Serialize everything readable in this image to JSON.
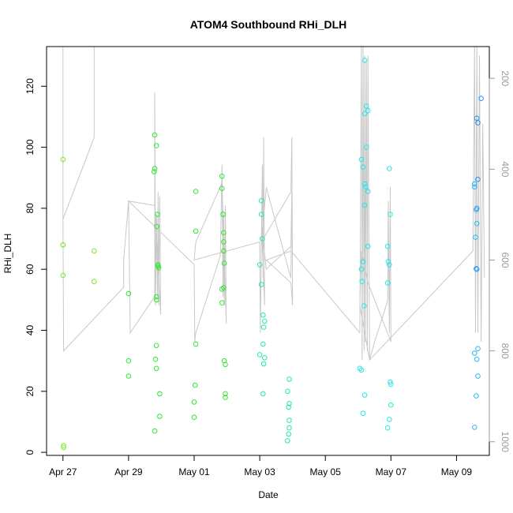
{
  "chart_data": {
    "type": "scatter",
    "title": "ATOM4 Southbound RHi_DLH",
    "xlabel": "Date",
    "ylabel": "RHi_DLH",
    "x_axis": {
      "unit": "days after Apr 27",
      "range": [
        -0.5,
        13.0
      ],
      "ticks": [
        {
          "x": 0,
          "label": "Apr 27"
        },
        {
          "x": 2,
          "label": "Apr 29"
        },
        {
          "x": 4,
          "label": "May 01"
        },
        {
          "x": 6,
          "label": "May 03"
        },
        {
          "x": 8,
          "label": "May 05"
        },
        {
          "x": 10,
          "label": "May 07"
        },
        {
          "x": 12,
          "label": "May 09"
        }
      ]
    },
    "y_axis": {
      "range": [
        -1,
        133
      ],
      "ticks": [
        0,
        20,
        40,
        60,
        80,
        100,
        120
      ]
    },
    "y2_axis": {
      "label": "",
      "range": [
        1030,
        130
      ],
      "reversed": true,
      "ticks": [
        200,
        400,
        600,
        800,
        1000
      ],
      "color": "#9a9a9a"
    },
    "grid": false,
    "legend": "none",
    "point_colors": {
      "lime": "#7fe830",
      "green": "#2ee82e",
      "teal": "#20e8a8",
      "cyan": "#22e8e8",
      "sky": "#2ab8f0",
      "blue": "#2a8ef0"
    },
    "line_color": "#c8c8c8",
    "series": [
      {
        "color": "lime",
        "points": [
          [
            0.0,
            96
          ],
          [
            0.0,
            68
          ],
          [
            0.0,
            68
          ],
          [
            0.0,
            58
          ],
          [
            0.02,
            2.2
          ],
          [
            0.02,
            1.6
          ],
          [
            0.95,
            66
          ],
          [
            0.95,
            56
          ]
        ]
      },
      {
        "color": "green",
        "points": [
          [
            2.0,
            52
          ],
          [
            2.0,
            30
          ],
          [
            2.0,
            25
          ],
          [
            2.8,
            104
          ],
          [
            2.8,
            93
          ],
          [
            2.78,
            92
          ],
          [
            2.85,
            100.5
          ],
          [
            2.88,
            78
          ],
          [
            2.86,
            74
          ],
          [
            2.9,
            61.5
          ],
          [
            2.9,
            61
          ],
          [
            2.92,
            60.5
          ],
          [
            2.85,
            51
          ],
          [
            2.85,
            50
          ],
          [
            2.85,
            35
          ],
          [
            2.82,
            30.5
          ],
          [
            2.85,
            27.5
          ],
          [
            2.95,
            19.2
          ],
          [
            2.95,
            11.8
          ],
          [
            2.8,
            7
          ],
          [
            4.05,
            85.5
          ],
          [
            4.05,
            72.5
          ],
          [
            4.05,
            35.5
          ],
          [
            4.03,
            22
          ],
          [
            4.0,
            16.5
          ],
          [
            4.0,
            11.5
          ],
          [
            4.85,
            90.5
          ],
          [
            4.85,
            86.5
          ],
          [
            4.88,
            78
          ],
          [
            4.88,
            78
          ],
          [
            4.9,
            72
          ],
          [
            4.9,
            69
          ],
          [
            4.9,
            66
          ],
          [
            4.92,
            62
          ],
          [
            4.85,
            53.5
          ],
          [
            4.9,
            54
          ],
          [
            4.85,
            49
          ],
          [
            4.92,
            30
          ],
          [
            4.95,
            28.8
          ],
          [
            4.95,
            19.2
          ],
          [
            4.95,
            18
          ]
        ]
      },
      {
        "color": "teal",
        "points": [
          [
            6.05,
            82.5
          ],
          [
            6.05,
            78
          ],
          [
            6.08,
            70
          ],
          [
            6.0,
            61.5
          ],
          [
            6.05,
            55
          ],
          [
            6.1,
            45
          ],
          [
            6.15,
            43
          ],
          [
            6.12,
            41
          ],
          [
            6.1,
            35.5
          ],
          [
            6.0,
            32
          ],
          [
            6.15,
            31
          ],
          [
            6.12,
            29
          ],
          [
            6.1,
            19.2
          ],
          [
            6.9,
            24
          ],
          [
            6.85,
            20
          ],
          [
            6.9,
            16
          ],
          [
            6.88,
            14.8
          ],
          [
            6.9,
            10.5
          ],
          [
            6.9,
            8
          ],
          [
            6.88,
            6
          ],
          [
            6.85,
            3.8
          ]
        ]
      },
      {
        "color": "cyan",
        "points": [
          [
            9.2,
            128.5
          ],
          [
            9.25,
            113.5
          ],
          [
            9.3,
            112
          ],
          [
            9.2,
            111
          ],
          [
            9.25,
            100
          ],
          [
            9.1,
            96
          ],
          [
            9.15,
            93.5
          ],
          [
            9.2,
            88
          ],
          [
            9.22,
            87
          ],
          [
            9.3,
            85.5
          ],
          [
            9.2,
            81
          ],
          [
            9.3,
            67.5
          ],
          [
            9.15,
            62.5
          ],
          [
            9.1,
            60
          ],
          [
            9.12,
            56
          ],
          [
            9.18,
            48
          ],
          [
            9.05,
            27.5
          ],
          [
            9.1,
            27
          ],
          [
            9.2,
            18.8
          ],
          [
            9.15,
            12.8
          ],
          [
            9.95,
            93
          ],
          [
            9.98,
            78
          ],
          [
            9.9,
            67.5
          ],
          [
            9.92,
            62.5
          ],
          [
            9.95,
            61.5
          ],
          [
            9.9,
            55.5
          ],
          [
            9.98,
            23
          ],
          [
            10.0,
            22.3
          ],
          [
            10.0,
            15.5
          ],
          [
            9.95,
            10.8
          ],
          [
            9.9,
            8
          ]
        ]
      },
      {
        "color": "sky",
        "points": [
          [
            12.55,
            88
          ],
          [
            12.55,
            87
          ],
          [
            12.6,
            79.5
          ],
          [
            12.62,
            75
          ],
          [
            12.58,
            70.5
          ],
          [
            12.62,
            60
          ],
          [
            12.55,
            32.5
          ],
          [
            12.65,
            34
          ],
          [
            12.62,
            30.5
          ],
          [
            12.65,
            25
          ],
          [
            12.6,
            18.5
          ],
          [
            12.55,
            8.2
          ]
        ]
      },
      {
        "color": "blue",
        "points": [
          [
            12.62,
            109.5
          ],
          [
            12.65,
            108
          ],
          [
            12.75,
            116
          ],
          [
            12.65,
            89.5
          ],
          [
            12.62,
            80
          ],
          [
            12.6,
            60.2
          ]
        ]
      }
    ],
    "pressure_trace": {
      "description": "y2 values (hPa) of the gray flight-profile line",
      "points": [
        [
          0.0,
          130
        ],
        [
          0.0,
          510
        ],
        [
          0.95,
          330
        ],
        [
          0.95,
          130
        ],
        [
          0.0,
          130
        ],
        [
          0.0,
          510
        ],
        [
          0.02,
          800
        ],
        [
          1.85,
          660
        ],
        [
          1.85,
          600
        ],
        [
          2.0,
          470
        ],
        [
          2.05,
          760
        ],
        [
          2.8,
          680
        ],
        [
          2.8,
          230
        ],
        [
          2.82,
          700
        ],
        [
          2.85,
          500
        ],
        [
          2.88,
          680
        ],
        [
          2.9,
          450
        ],
        [
          2.92,
          700
        ],
        [
          2.95,
          460
        ],
        [
          2.98,
          720
        ],
        [
          2.8,
          480
        ],
        [
          2.0,
          470
        ],
        [
          4.0,
          610
        ],
        [
          4.02,
          780
        ],
        [
          4.05,
          760
        ],
        [
          4.8,
          590
        ],
        [
          4.85,
          390
        ],
        [
          4.88,
          680
        ],
        [
          4.9,
          500
        ],
        [
          4.92,
          700
        ],
        [
          4.95,
          480
        ],
        [
          4.98,
          740
        ],
        [
          4.85,
          430
        ],
        [
          4.05,
          560
        ],
        [
          4.0,
          600
        ],
        [
          6.0,
          560
        ],
        [
          6.02,
          760
        ],
        [
          6.05,
          560
        ],
        [
          6.08,
          390
        ],
        [
          6.1,
          640
        ],
        [
          6.12,
          330
        ],
        [
          6.15,
          700
        ],
        [
          6.05,
          520
        ],
        [
          6.2,
          620
        ],
        [
          6.95,
          570
        ],
        [
          6.98,
          450
        ],
        [
          6.95,
          640
        ],
        [
          6.2,
          440
        ],
        [
          6.05,
          560
        ],
        [
          6.95,
          450
        ],
        [
          6.98,
          330
        ],
        [
          7.0,
          700
        ],
        [
          6.95,
          650
        ],
        [
          6.2,
          600
        ],
        [
          6.95,
          580
        ],
        [
          9.05,
          760
        ],
        [
          9.1,
          130
        ],
        [
          9.12,
          820
        ],
        [
          9.15,
          130
        ],
        [
          9.18,
          800
        ],
        [
          9.2,
          150
        ],
        [
          9.22,
          780
        ],
        [
          9.25,
          160
        ],
        [
          9.28,
          800
        ],
        [
          9.3,
          150
        ],
        [
          9.35,
          820
        ],
        [
          9.5,
          780
        ],
        [
          9.9,
          690
        ],
        [
          9.92,
          470
        ],
        [
          9.95,
          760
        ],
        [
          9.98,
          440
        ],
        [
          10.0,
          780
        ],
        [
          9.3,
          650
        ],
        [
          9.1,
          580
        ],
        [
          9.05,
          700
        ],
        [
          9.35,
          820
        ],
        [
          12.5,
          580
        ],
        [
          12.55,
          130
        ],
        [
          12.58,
          760
        ],
        [
          12.62,
          130
        ],
        [
          12.65,
          760
        ],
        [
          12.7,
          150
        ],
        [
          12.75,
          780
        ],
        [
          12.8,
          300
        ],
        [
          12.85,
          640
        ]
      ]
    }
  }
}
